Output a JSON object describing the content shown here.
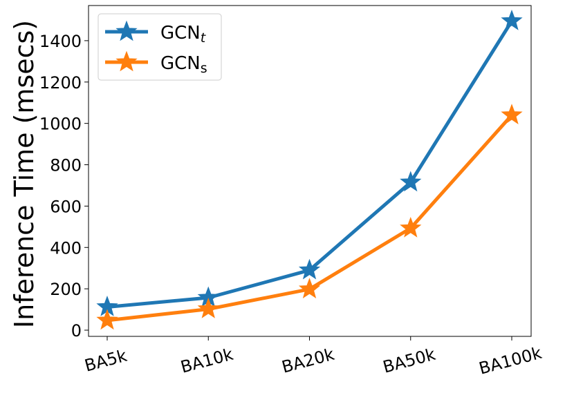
{
  "chart_data": {
    "type": "line",
    "categories": [
      "BA5k",
      "BA10k",
      "BA20k",
      "BA50k",
      "BA100k"
    ],
    "series": [
      {
        "name": "GCN",
        "subscript": "t",
        "color": "#1f77b4",
        "marker": "star",
        "values": [
          112,
          157,
          290,
          715,
          1495
        ]
      },
      {
        "name": "GCN",
        "subscript": "s",
        "color": "#ff7f0e",
        "marker": "star",
        "values": [
          47,
          102,
          198,
          493,
          1040
        ]
      }
    ],
    "ylabel": "Inference Time (msecs)",
    "xlabel": "",
    "ylim": [
      -30,
      1570
    ],
    "yticks": [
      0,
      200,
      400,
      600,
      800,
      1000,
      1200,
      1400
    ],
    "grid": false,
    "legend_position": "top-left"
  }
}
